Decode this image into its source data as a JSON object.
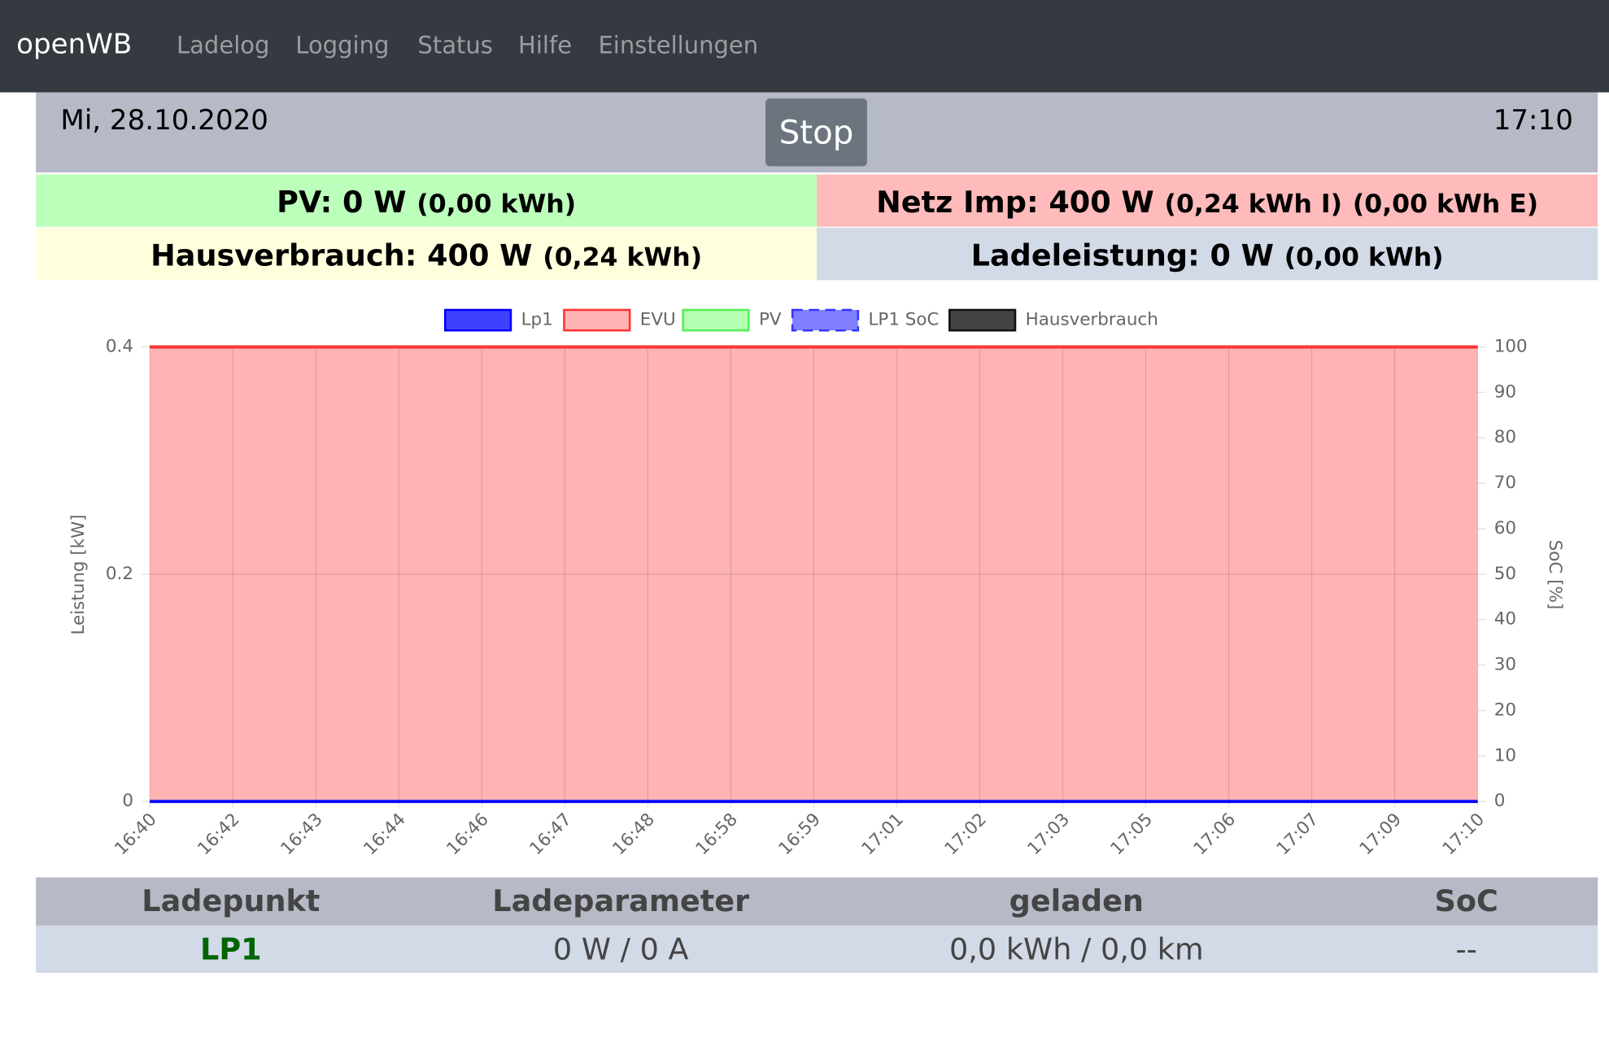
{
  "nav": {
    "brand": "openWB",
    "links": [
      "Ladelog",
      "Logging",
      "Status",
      "Hilfe",
      "Einstellungen"
    ]
  },
  "header": {
    "date": "Mi, 28.10.2020",
    "button": "Stop",
    "time": "17:10"
  },
  "summary": {
    "pv": {
      "label": "PV: 0 W",
      "sub": [
        "(0,00 kWh)"
      ]
    },
    "netz": {
      "label": "Netz Imp: 400 W",
      "sub": [
        "(0,24 kWh I)",
        "(0,00 kWh E)"
      ]
    },
    "haus": {
      "label": "Hausverbrauch: 400 W",
      "sub": [
        "(0,24 kWh)"
      ]
    },
    "lade": {
      "label": "Ladeleistung: 0 W",
      "sub": [
        "(0,00 kWh)"
      ]
    }
  },
  "chart_data": {
    "type": "line",
    "categories": [
      "16:40",
      "16:42",
      "16:43",
      "16:44",
      "16:46",
      "16:47",
      "16:48",
      "16:58",
      "16:59",
      "17:01",
      "17:02",
      "17:03",
      "17:05",
      "17:06",
      "17:07",
      "17:09",
      "17:10"
    ],
    "series": [
      {
        "name": "Lp1",
        "color": "#0000ff",
        "fill": "#4040ff",
        "values": [
          0,
          0,
          0,
          0,
          0,
          0,
          0,
          0,
          0,
          0,
          0,
          0,
          0,
          0,
          0,
          0,
          0
        ]
      },
      {
        "name": "EVU",
        "color": "#ff3333",
        "fill": "#ffb3b3",
        "area": true,
        "values": [
          0.4,
          0.4,
          0.4,
          0.4,
          0.4,
          0.4,
          0.4,
          0.4,
          0.4,
          0.4,
          0.4,
          0.4,
          0.4,
          0.4,
          0.4,
          0.4,
          0.4
        ]
      },
      {
        "name": "PV",
        "color": "#55ee55",
        "fill": "#b3ffb3",
        "values": [
          0,
          0,
          0,
          0,
          0,
          0,
          0,
          0,
          0,
          0,
          0,
          0,
          0,
          0,
          0,
          0,
          0
        ]
      },
      {
        "name": "LP1 SoC",
        "color": "#3333ff",
        "fill": "#8080ff",
        "dash": true,
        "axis": "y2",
        "values": [
          null,
          null,
          null,
          null,
          null,
          null,
          null,
          null,
          null,
          null,
          null,
          null,
          null,
          null,
          null,
          null,
          null
        ]
      },
      {
        "name": "Hausverbrauch",
        "color": "#111111",
        "fill": "#444444",
        "values": [
          0.4,
          0.4,
          0.4,
          0.4,
          0.4,
          0.4,
          0.4,
          0.4,
          0.4,
          0.4,
          0.4,
          0.4,
          0.4,
          0.4,
          0.4,
          0.4,
          0.4
        ]
      }
    ],
    "y_label": "Leistung [kW]",
    "y2_label": "SoC [%]",
    "ylim": [
      0,
      0.4
    ],
    "yticks": [
      0,
      0.2,
      0.4
    ],
    "y2lim": [
      0,
      100
    ],
    "y2ticks": [
      0,
      10,
      20,
      30,
      40,
      50,
      60,
      70,
      80,
      90,
      100
    ],
    "grid": true,
    "legend": "top"
  },
  "table": {
    "headers": [
      "Ladepunkt",
      "Ladeparameter",
      "geladen",
      "SoC"
    ],
    "rows": [
      [
        "LP1",
        "0 W / 0 A",
        "0,0 kWh / 0,0 km",
        "--"
      ]
    ]
  }
}
